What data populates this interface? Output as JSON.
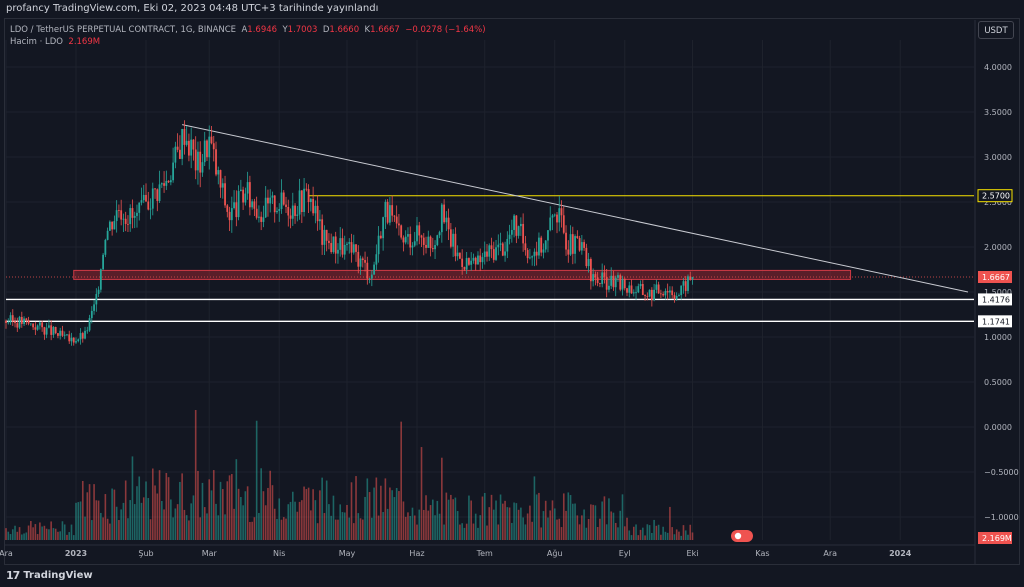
{
  "header": {
    "published": "profancy TradingView.com, Eki 02, 2023 04:48 UTC+3 tarihinde yayınlandı"
  },
  "legend": {
    "symbol": "LDO / TetherUS PERPETUAL CONTRACT, 1G, BINANCE",
    "open_label": "A",
    "open": "1.6946",
    "high_label": "Y",
    "high": "1.7003",
    "low_label": "D",
    "low": "1.6660",
    "close_label": "K",
    "close": "1.6667",
    "change": "−0.0278 (−1.64%)",
    "volume_label": "Hacim · LDO",
    "volume_value": "2.169M"
  },
  "toolbar": {
    "currency": "USDT"
  },
  "footer": {
    "brand": "TradingView"
  },
  "colors": {
    "background": "#131722",
    "up": "#26a69a",
    "down": "#ef5350",
    "resistance": "#f7e200",
    "support": "#ffffff",
    "zone": "#b22833",
    "trendline": "#c9cbd2"
  },
  "chart_data": {
    "type": "candlestick",
    "symbol": "LDO / TetherUS PERPETUAL CONTRACT",
    "interval": "1G",
    "exchange": "BINANCE",
    "price_axis": {
      "ticks": [
        "4.0000",
        "3.5000",
        "3.0000",
        "2.5000",
        "2.0000",
        "1.5000",
        "1.0000",
        "0.5000",
        "0.0000",
        "−0.5000",
        "−1.0000"
      ],
      "tick_values": [
        4.0,
        3.5,
        3.0,
        2.5,
        2.0,
        1.5,
        1.0,
        0.5,
        0.0,
        -0.5,
        -1.0
      ],
      "ylim": [
        -1.2,
        4.4
      ]
    },
    "time_axis": {
      "labels": [
        "Ara",
        "2023",
        "Şub",
        "Mar",
        "Nis",
        "May",
        "Haz",
        "Tem",
        "Ağu",
        "Eyl",
        "Eki",
        "Kas",
        "Ara",
        "2024"
      ],
      "months": [
        "2022-12",
        "2023-01",
        "2023-02",
        "2023-03",
        "2023-04",
        "2023-05",
        "2023-06",
        "2023-07",
        "2023-08",
        "2023-09",
        "2023-10",
        "2023-11",
        "2023-12",
        "2024-01"
      ]
    },
    "price_labels": [
      {
        "text": "2.5700",
        "value": 2.57,
        "style": "resistance"
      },
      {
        "text": "1.6667",
        "value": 1.6667,
        "style": "last"
      },
      {
        "text": "1.4176",
        "value": 1.4176,
        "style": "support"
      },
      {
        "text": "1.1741",
        "value": 1.1741,
        "style": "support"
      },
      {
        "text": "2.169M",
        "value": 2.169,
        "style": "volume"
      }
    ],
    "horizontal_lines": [
      {
        "name": "resistance-line",
        "value": 2.57,
        "from": "2023-04-14",
        "to": "2024-01-31"
      },
      {
        "name": "support-line-1",
        "value": 1.4176,
        "from": "2022-12-01",
        "to": "2024-01-31"
      },
      {
        "name": "support-line-2",
        "value": 1.1741,
        "from": "2022-12-01",
        "to": "2024-01-31"
      }
    ],
    "zone": {
      "top": 1.74,
      "bottom": 1.64,
      "from": "2022-12-31",
      "to": "2023-12-10"
    },
    "trendline": {
      "from": {
        "date": "2023-02-17",
        "value": 3.36
      },
      "to": {
        "date": "2024-01-31",
        "value": 1.5
      }
    },
    "series_close": [
      [
        "2022-12-01",
        1.18
      ],
      [
        "2022-12-08",
        1.17
      ],
      [
        "2022-12-15",
        1.12
      ],
      [
        "2022-12-22",
        1.05
      ],
      [
        "2022-12-29",
        0.96
      ],
      [
        "2023-01-05",
        1.02
      ],
      [
        "2023-01-10",
        1.42
      ],
      [
        "2023-01-14",
        2.15
      ],
      [
        "2023-01-20",
        2.45
      ],
      [
        "2023-01-27",
        2.3
      ],
      [
        "2023-02-03",
        2.55
      ],
      [
        "2023-02-10",
        2.75
      ],
      [
        "2023-02-15",
        3.05
      ],
      [
        "2023-02-18",
        3.3
      ],
      [
        "2023-02-24",
        2.9
      ],
      [
        "2023-03-01",
        3.2
      ],
      [
        "2023-03-05",
        2.75
      ],
      [
        "2023-03-10",
        2.35
      ],
      [
        "2023-03-17",
        2.6
      ],
      [
        "2023-03-24",
        2.4
      ],
      [
        "2023-03-31",
        2.5
      ],
      [
        "2023-04-07",
        2.45
      ],
      [
        "2023-04-14",
        2.6
      ],
      [
        "2023-04-21",
        2.05
      ],
      [
        "2023-04-28",
        2.02
      ],
      [
        "2023-05-05",
        1.9
      ],
      [
        "2023-05-12",
        1.7
      ],
      [
        "2023-05-18",
        2.45
      ],
      [
        "2023-05-25",
        2.05
      ],
      [
        "2023-06-01",
        2.15
      ],
      [
        "2023-06-08",
        2.05
      ],
      [
        "2023-06-12",
        2.35
      ],
      [
        "2023-06-19",
        1.9
      ],
      [
        "2023-06-26",
        1.78
      ],
      [
        "2023-07-03",
        1.95
      ],
      [
        "2023-07-10",
        2.02
      ],
      [
        "2023-07-14",
        2.25
      ],
      [
        "2023-07-21",
        1.95
      ],
      [
        "2023-07-28",
        2.05
      ],
      [
        "2023-08-01",
        2.45
      ],
      [
        "2023-08-07",
        2.05
      ],
      [
        "2023-08-14",
        1.95
      ],
      [
        "2023-08-17",
        1.65
      ],
      [
        "2023-08-24",
        1.62
      ],
      [
        "2023-08-31",
        1.58
      ],
      [
        "2023-09-07",
        1.52
      ],
      [
        "2023-09-12",
        1.48
      ],
      [
        "2023-09-19",
        1.55
      ],
      [
        "2023-09-25",
        1.48
      ],
      [
        "2023-09-29",
        1.62
      ],
      [
        "2023-10-01",
        1.67
      ]
    ],
    "volume_axis_max_m": 10
  }
}
